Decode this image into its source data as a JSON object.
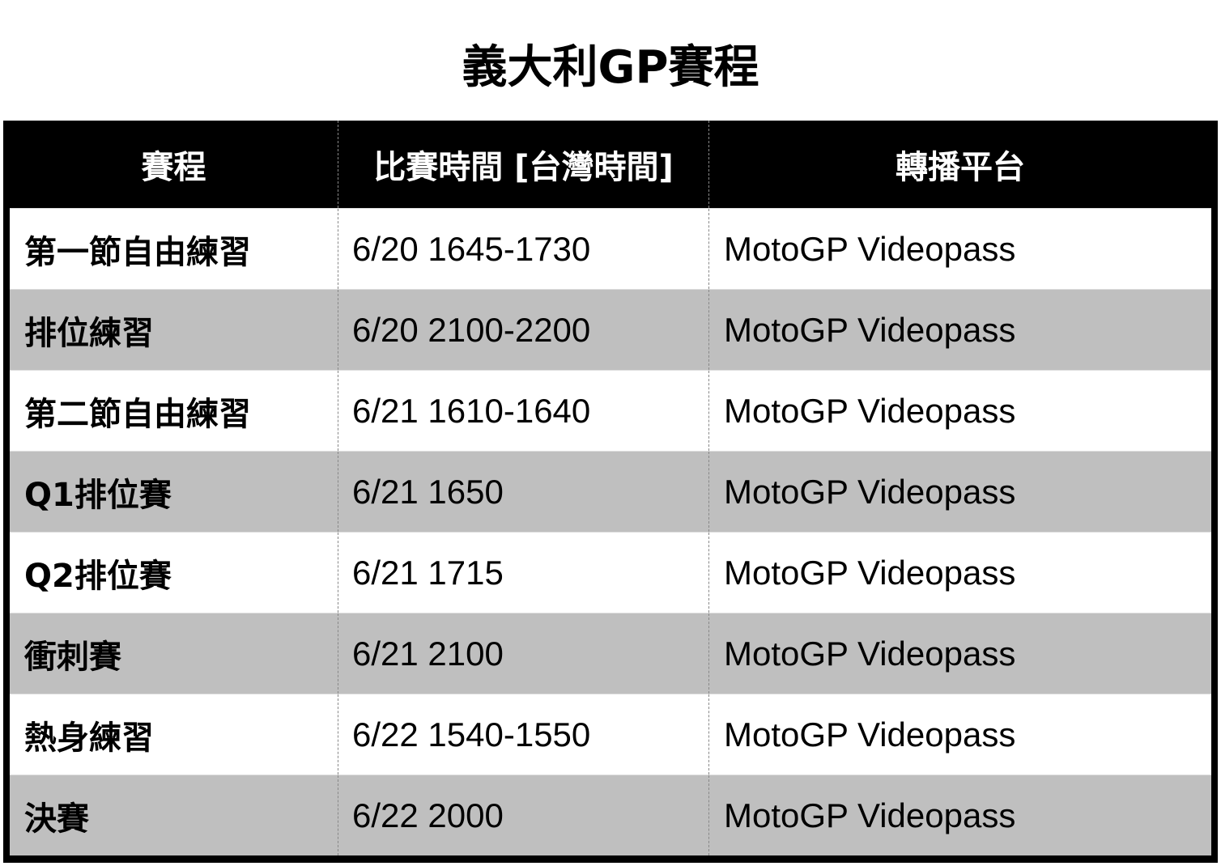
{
  "title": "義大利GP賽程",
  "headers": [
    "賽程",
    "比賽時間 [台灣時間]",
    "轉播平台"
  ],
  "colors": {
    "header_bg": "#000000",
    "row_even": "#ffffff",
    "row_odd": "#bfbfbf"
  },
  "rows": [
    {
      "session": "第一節自由練習",
      "time": "6/20 1645-1730",
      "platform": "MotoGP Videopass"
    },
    {
      "session": "排位練習",
      "time": "6/20 2100-2200",
      "platform": "MotoGP Videopass"
    },
    {
      "session": "第二節自由練習",
      "time": "6/21 1610-1640",
      "platform": "MotoGP Videopass"
    },
    {
      "session": "Q1排位賽",
      "time": "6/21 1650",
      "platform": "MotoGP Videopass"
    },
    {
      "session": "Q2排位賽",
      "time": "6/21 1715",
      "platform": "MotoGP Videopass"
    },
    {
      "session": "衝刺賽",
      "time": "6/21 2100",
      "platform": "MotoGP Videopass"
    },
    {
      "session": "熱身練習",
      "time": "6/22 1540-1550",
      "platform": "MotoGP Videopass"
    },
    {
      "session": "決賽",
      "time": "6/22 2000",
      "platform": "MotoGP Videopass"
    }
  ]
}
